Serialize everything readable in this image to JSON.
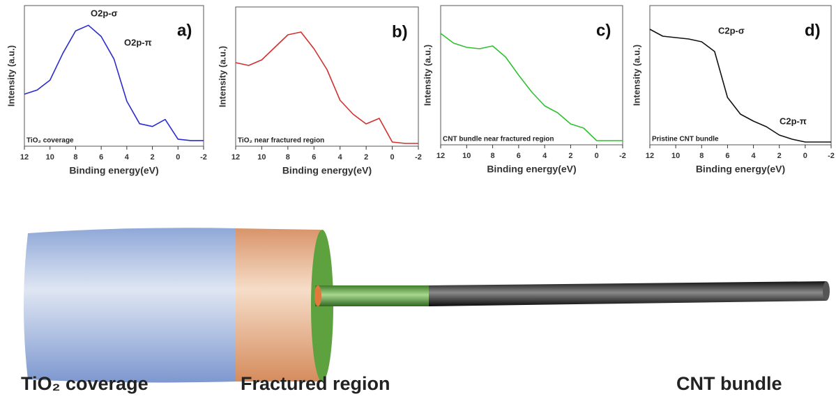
{
  "chart_data": [
    {
      "type": "line",
      "panel": "a)",
      "xlabel": "Binding energy(eV)",
      "ylabel": "Intensity (a.u.)",
      "label": "TiO₂ coverage",
      "annotations": [
        "O2p-σ",
        "O2p-π"
      ],
      "x": [
        12,
        11,
        10,
        9,
        8,
        7,
        6,
        5,
        4,
        3,
        2,
        1,
        0,
        -1,
        -2
      ],
      "color": "#2b2bd0",
      "values": [
        0.37,
        0.4,
        0.47,
        0.66,
        0.82,
        0.86,
        0.78,
        0.62,
        0.32,
        0.16,
        0.14,
        0.19,
        0.05,
        0.04,
        0.04
      ],
      "xlim": [
        12,
        -2
      ],
      "xticks": [
        12,
        10,
        8,
        6,
        4,
        2,
        0,
        -2
      ],
      "ylim": [
        0,
        1
      ]
    },
    {
      "type": "line",
      "panel": "b)",
      "xlabel": "Binding energy(eV)",
      "ylabel": "Intensity (a.u.)",
      "label": "TiO₂ near fractured region",
      "annotations": [],
      "x": [
        12,
        11,
        10,
        9,
        8,
        7,
        6,
        5,
        4,
        3,
        2,
        1,
        0,
        -1,
        -2
      ],
      "color": "#d03030",
      "values": [
        0.6,
        0.58,
        0.62,
        0.71,
        0.8,
        0.82,
        0.7,
        0.55,
        0.33,
        0.23,
        0.16,
        0.2,
        0.03,
        0.02,
        0.02
      ],
      "xlim": [
        12,
        -2
      ],
      "xticks": [
        12,
        10,
        8,
        6,
        4,
        2,
        0,
        -2
      ],
      "ylim": [
        0,
        1
      ]
    },
    {
      "type": "line",
      "panel": "c)",
      "xlabel": "Binding energy(eV)",
      "ylabel": "Intensity (a.u.)",
      "label": "CNT bundle near fractured region",
      "annotations": [],
      "x": [
        12,
        11,
        10,
        9,
        8,
        7,
        6,
        5,
        4,
        3,
        2,
        1,
        0,
        -1,
        -2
      ],
      "color": "#30c030",
      "values": [
        0.8,
        0.73,
        0.7,
        0.69,
        0.71,
        0.63,
        0.5,
        0.38,
        0.28,
        0.23,
        0.15,
        0.12,
        0.03,
        0.03,
        0.03
      ],
      "xlim": [
        12,
        -2
      ],
      "xticks": [
        12,
        10,
        8,
        6,
        4,
        2,
        0,
        -2
      ],
      "ylim": [
        0,
        1
      ]
    },
    {
      "type": "line",
      "panel": "d)",
      "xlabel": "Binding energy(eV)",
      "ylabel": "Intensity (a.u.)",
      "label": "Pristine CNT bundle",
      "annotations": [
        "C2p-σ",
        "C2p-π"
      ],
      "x": [
        12,
        11,
        10,
        9,
        8,
        7,
        6,
        5,
        4,
        3,
        2,
        1,
        0,
        -1,
        -2
      ],
      "color": "#111111",
      "values": [
        0.83,
        0.78,
        0.77,
        0.76,
        0.74,
        0.67,
        0.34,
        0.22,
        0.17,
        0.13,
        0.07,
        0.04,
        0.02,
        0.02,
        0.02
      ],
      "xlim": [
        12,
        -2
      ],
      "xticks": [
        12,
        10,
        8,
        6,
        4,
        2,
        0,
        -2
      ],
      "ylim": [
        0,
        1
      ]
    }
  ],
  "diagram": {
    "labels": [
      "TiO₂ coverage",
      "Fractured region",
      "CNT bundle"
    ]
  }
}
